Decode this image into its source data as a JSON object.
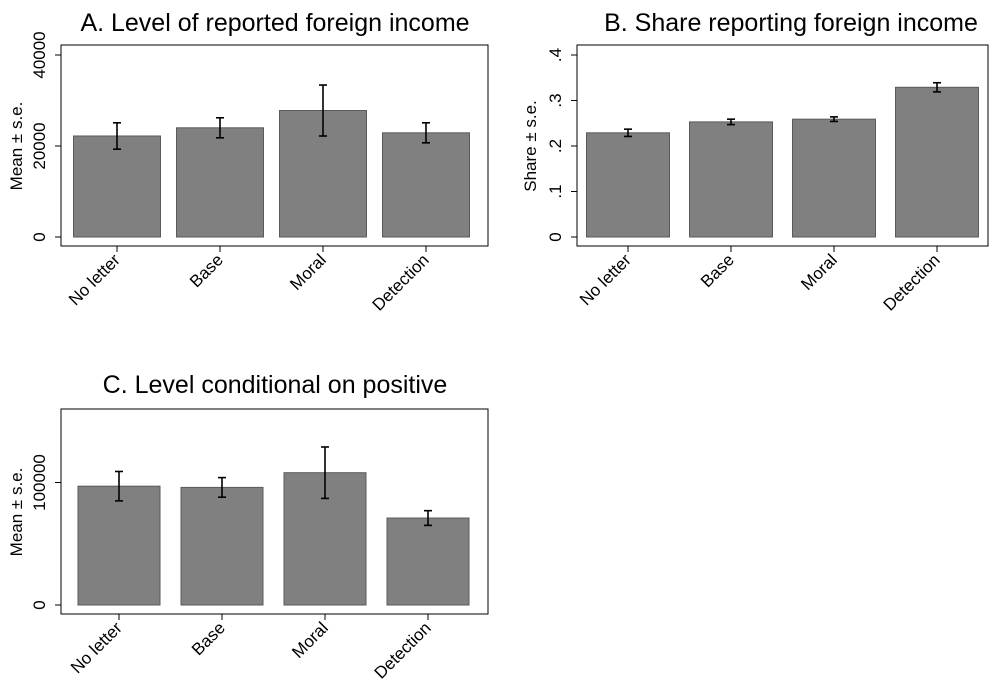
{
  "chart_data": [
    {
      "type": "bar",
      "title": "A. Level of reported foreign income",
      "ylabel": "Mean ± s.e.",
      "categories": [
        "No letter",
        "Base",
        "Moral",
        "Detection"
      ],
      "values": [
        22200,
        24000,
        27800,
        22900
      ],
      "errors": [
        2900,
        2200,
        5600,
        2200
      ],
      "ylim": [
        0,
        40000
      ],
      "yticks": [
        {
          "value": 0,
          "label": "0"
        },
        {
          "value": 20000,
          "label": "20000"
        },
        {
          "value": 40000,
          "label": "40000"
        }
      ],
      "bar_color": "#808080",
      "grid": false
    },
    {
      "type": "bar",
      "title": "B. Share reporting foreign income",
      "ylabel": "Share ± s.e.",
      "categories": [
        "No letter",
        "Base",
        "Moral",
        "Detection"
      ],
      "values": [
        0.229,
        0.253,
        0.259,
        0.329
      ],
      "errors": [
        0.008,
        0.006,
        0.005,
        0.01
      ],
      "ylim": [
        0,
        0.4
      ],
      "yticks": [
        {
          "value": 0,
          "label": "0"
        },
        {
          "value": 0.1,
          "label": ".1"
        },
        {
          "value": 0.2,
          "label": ".2"
        },
        {
          "value": 0.3,
          "label": ".3"
        },
        {
          "value": 0.4,
          "label": ".4"
        }
      ],
      "bar_color": "#808080",
      "grid": false
    },
    {
      "type": "bar",
      "title": "C. Level conditional on positive",
      "ylabel": "Mean ± s.e.",
      "categories": [
        "No letter",
        "Base",
        "Moral",
        "Detection"
      ],
      "values": [
        97000,
        96000,
        108000,
        71000
      ],
      "errors": [
        12000,
        8000,
        21000,
        6000
      ],
      "ylim": [
        0,
        160000
      ],
      "yticks": [
        {
          "value": 0,
          "label": "0"
        },
        {
          "value": 100000,
          "label": "100000"
        }
      ],
      "bar_color": "#808080",
      "grid": false
    }
  ]
}
